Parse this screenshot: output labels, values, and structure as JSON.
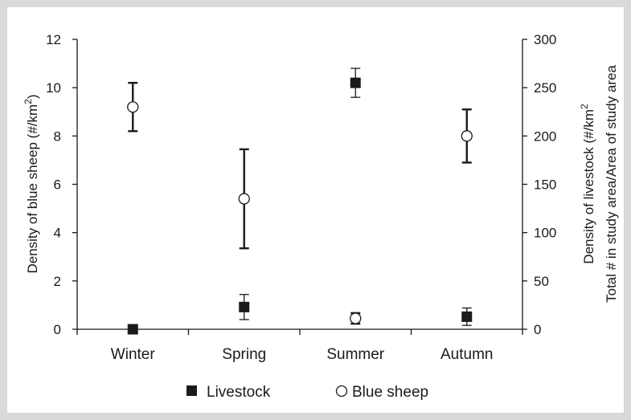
{
  "chart_data": {
    "type": "scatter",
    "categories": [
      "Winter",
      "Spring",
      "Summer",
      "Autumn"
    ],
    "left_axis": {
      "label_main": "Density of blue sheep (#/km",
      "label_sup": "2",
      "label_end": ")",
      "ylim": [
        0,
        12
      ],
      "ticks": [
        "0",
        "2",
        "4",
        "6",
        "8",
        "10",
        "12"
      ]
    },
    "right_axis": {
      "label_line1_main": "Density of livestock (#/km",
      "label_line1_sup": "2",
      "label_line2": "Total # in study area/Area of study area",
      "ylim": [
        0,
        300
      ],
      "ticks": [
        "0",
        "50",
        "100",
        "150",
        "200",
        "250",
        "300"
      ]
    },
    "series": [
      {
        "name": "Livestock",
        "marker": "filled-square",
        "axis": "right",
        "values": [
          0,
          23,
          255,
          13
        ],
        "errors": [
          0,
          13,
          15,
          9
        ]
      },
      {
        "name": "Blue sheep",
        "marker": "open-circle",
        "axis": "left",
        "values": [
          9.2,
          5.4,
          0.45,
          8.0
        ],
        "errors": [
          1.0,
          2.05,
          0.22,
          1.1
        ]
      }
    ],
    "legend": {
      "placement": "bottom"
    },
    "grid": false
  },
  "colors": {
    "frame": "#d9d9d9",
    "ink": "#1a1a1a",
    "marker_fill": "#1a1a1a",
    "open_fill": "#ffffff"
  }
}
